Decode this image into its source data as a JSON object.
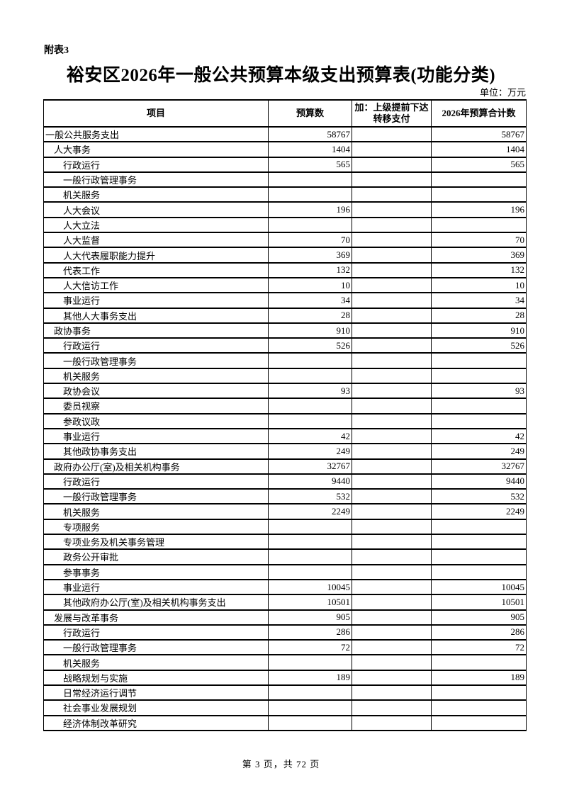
{
  "page": {
    "appendix_label": "附表3",
    "title": "裕安区2026年一般公共预算本级支出预算表(功能分类)",
    "unit_label": "单位：万元",
    "footer": "第 3 页，共 72 页"
  },
  "colors": {
    "text": "#000000",
    "background": "#ffffff",
    "border": "#000000"
  },
  "table": {
    "headers": [
      "项目",
      "预算数",
      "加：上级提前下达转移支付",
      "2026年预算合计数"
    ],
    "rows": [
      {
        "name": "一般公共服务支出",
        "level": 0,
        "budget": "58767",
        "transfer": "",
        "total": "58767"
      },
      {
        "name": "人大事务",
        "level": 1,
        "budget": "1404",
        "transfer": "",
        "total": "1404"
      },
      {
        "name": "行政运行",
        "level": 2,
        "budget": "565",
        "transfer": "",
        "total": "565"
      },
      {
        "name": "一般行政管理事务",
        "level": 2,
        "budget": "",
        "transfer": "",
        "total": ""
      },
      {
        "name": "机关服务",
        "level": 2,
        "budget": "",
        "transfer": "",
        "total": ""
      },
      {
        "name": "人大会议",
        "level": 2,
        "budget": "196",
        "transfer": "",
        "total": "196"
      },
      {
        "name": "人大立法",
        "level": 2,
        "budget": "",
        "transfer": "",
        "total": ""
      },
      {
        "name": "人大监督",
        "level": 2,
        "budget": "70",
        "transfer": "",
        "total": "70"
      },
      {
        "name": "人大代表履职能力提升",
        "level": 2,
        "budget": "369",
        "transfer": "",
        "total": "369"
      },
      {
        "name": "代表工作",
        "level": 2,
        "budget": "132",
        "transfer": "",
        "total": "132"
      },
      {
        "name": "人大信访工作",
        "level": 2,
        "budget": "10",
        "transfer": "",
        "total": "10"
      },
      {
        "name": "事业运行",
        "level": 2,
        "budget": "34",
        "transfer": "",
        "total": "34"
      },
      {
        "name": "其他人大事务支出",
        "level": 2,
        "budget": "28",
        "transfer": "",
        "total": "28"
      },
      {
        "name": "政协事务",
        "level": 1,
        "budget": "910",
        "transfer": "",
        "total": "910"
      },
      {
        "name": "行政运行",
        "level": 2,
        "budget": "526",
        "transfer": "",
        "total": "526"
      },
      {
        "name": "一般行政管理事务",
        "level": 2,
        "budget": "",
        "transfer": "",
        "total": ""
      },
      {
        "name": "机关服务",
        "level": 2,
        "budget": "",
        "transfer": "",
        "total": ""
      },
      {
        "name": "政协会议",
        "level": 2,
        "budget": "93",
        "transfer": "",
        "total": "93"
      },
      {
        "name": "委员视察",
        "level": 2,
        "budget": "",
        "transfer": "",
        "total": ""
      },
      {
        "name": "参政议政",
        "level": 2,
        "budget": "",
        "transfer": "",
        "total": ""
      },
      {
        "name": "事业运行",
        "level": 2,
        "budget": "42",
        "transfer": "",
        "total": "42"
      },
      {
        "name": "其他政协事务支出",
        "level": 2,
        "budget": "249",
        "transfer": "",
        "total": "249"
      },
      {
        "name": "政府办公厅(室)及相关机构事务",
        "level": 1,
        "budget": "32767",
        "transfer": "",
        "total": "32767"
      },
      {
        "name": "行政运行",
        "level": 2,
        "budget": "9440",
        "transfer": "",
        "total": "9440"
      },
      {
        "name": "一般行政管理事务",
        "level": 2,
        "budget": "532",
        "transfer": "",
        "total": "532"
      },
      {
        "name": "机关服务",
        "level": 2,
        "budget": "2249",
        "transfer": "",
        "total": "2249"
      },
      {
        "name": "专项服务",
        "level": 2,
        "budget": "",
        "transfer": "",
        "total": ""
      },
      {
        "name": "专项业务及机关事务管理",
        "level": 2,
        "budget": "",
        "transfer": "",
        "total": ""
      },
      {
        "name": "政务公开审批",
        "level": 2,
        "budget": "",
        "transfer": "",
        "total": ""
      },
      {
        "name": "参事事务",
        "level": 2,
        "budget": "",
        "transfer": "",
        "total": ""
      },
      {
        "name": "事业运行",
        "level": 2,
        "budget": "10045",
        "transfer": "",
        "total": "10045"
      },
      {
        "name": "其他政府办公厅(室)及相关机构事务支出",
        "level": 2,
        "budget": "10501",
        "transfer": "",
        "total": "10501"
      },
      {
        "name": "发展与改革事务",
        "level": 1,
        "budget": "905",
        "transfer": "",
        "total": "905"
      },
      {
        "name": "行政运行",
        "level": 2,
        "budget": "286",
        "transfer": "",
        "total": "286"
      },
      {
        "name": "一般行政管理事务",
        "level": 2,
        "budget": "72",
        "transfer": "",
        "total": "72"
      },
      {
        "name": "机关服务",
        "level": 2,
        "budget": "",
        "transfer": "",
        "total": ""
      },
      {
        "name": "战略规划与实施",
        "level": 2,
        "budget": "189",
        "transfer": "",
        "total": "189"
      },
      {
        "name": "日常经济运行调节",
        "level": 2,
        "budget": "",
        "transfer": "",
        "total": ""
      },
      {
        "name": "社会事业发展规划",
        "level": 2,
        "budget": "",
        "transfer": "",
        "total": ""
      },
      {
        "name": "经济体制改革研究",
        "level": 2,
        "budget": "",
        "transfer": "",
        "total": ""
      }
    ]
  }
}
